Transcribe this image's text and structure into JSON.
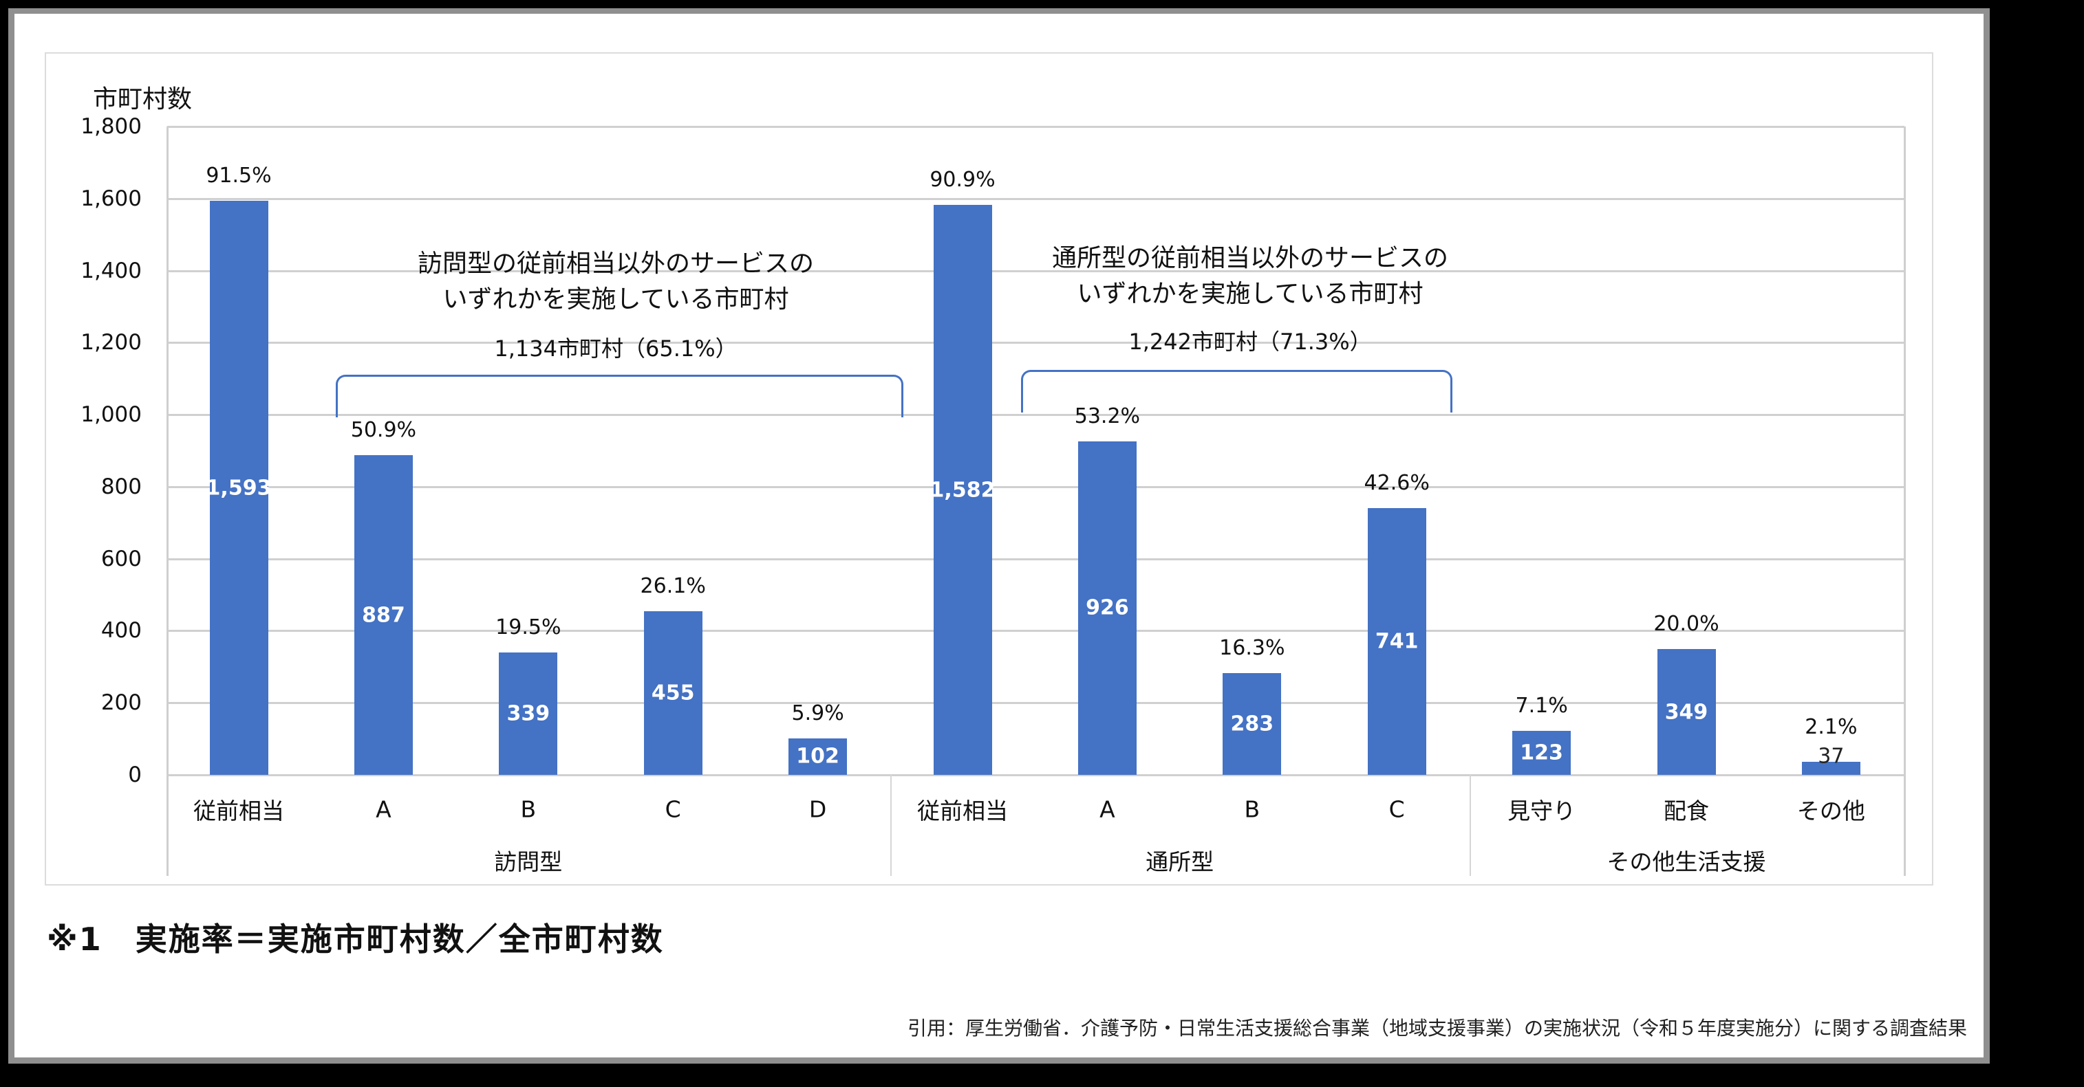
{
  "chart_data": {
    "type": "bar",
    "title": "",
    "ylabel": "市町村数",
    "xlabel": "",
    "ylim": [
      0,
      1800
    ],
    "yticks": [
      0,
      200,
      400,
      600,
      800,
      1000,
      1200,
      1400,
      1600,
      1800
    ],
    "ytick_labels": [
      "0",
      "200",
      "400",
      "600",
      "800",
      "1,000",
      "1,200",
      "1,400",
      "1,600",
      "1,800"
    ],
    "grid": true,
    "legend": "none",
    "bar_color": "#4472c4",
    "categories": [
      "従前相当",
      "A",
      "B",
      "C",
      "D",
      "従前相当",
      "A",
      "B",
      "C",
      "見守り",
      "配食",
      "その他"
    ],
    "groups": [
      {
        "name": "訪問型",
        "categories": [
          "従前相当",
          "A",
          "B",
          "C",
          "D"
        ]
      },
      {
        "name": "通所型",
        "categories": [
          "従前相当",
          "A",
          "B",
          "C"
        ]
      },
      {
        "name": "その他生活支援",
        "categories": [
          "見守り",
          "配食",
          "その他"
        ]
      }
    ],
    "values": [
      1593,
      887,
      339,
      455,
      102,
      1582,
      926,
      283,
      741,
      123,
      349,
      37
    ],
    "value_labels": [
      "1,593",
      "887",
      "339",
      "455",
      "102",
      "1,582",
      "926",
      "283",
      "741",
      "123",
      "349",
      "37"
    ],
    "rates": [
      "91.5%",
      "50.9%",
      "19.5%",
      "26.1%",
      "5.9%",
      "90.9%",
      "53.2%",
      "16.3%",
      "42.6%",
      "7.1%",
      "20.0%",
      "2.1%"
    ],
    "annotations": [
      {
        "line1": "訪問型の従前相当以外のサービスの",
        "line2": "いずれかを実施している市町村",
        "summary": "1,134市町村（65.1%）",
        "spans": [
          "A",
          "B",
          "C",
          "D"
        ]
      },
      {
        "line1": "通所型の従前相当以外のサービスの",
        "line2": "いずれかを実施している市町村",
        "summary": "1,242市町村（71.3%）",
        "spans": [
          "A",
          "B",
          "C"
        ]
      }
    ]
  },
  "footnote": "※1　実施率＝実施市町村数／全市町村数",
  "citation": "引用：厚生労働省．介護予防・日常生活支援総合事業（地域支援事業）の実施状況（令和５年度実施分）に関する調査結果"
}
